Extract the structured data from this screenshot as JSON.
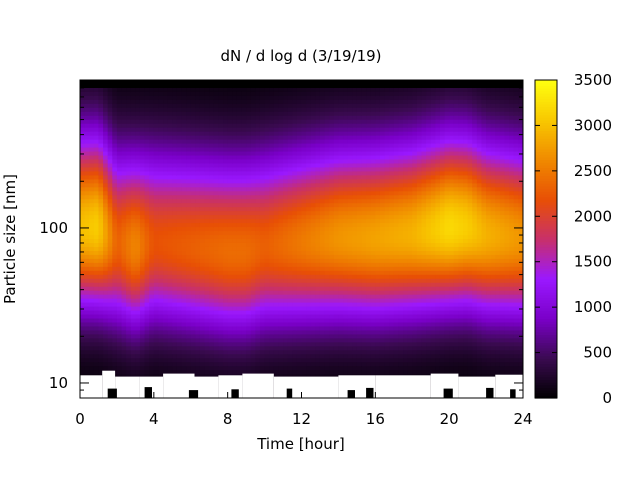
{
  "chart_data": {
    "type": "heatmap",
    "title": "dN / d log d (3/19/19)",
    "xlabel": "Time [hour]",
    "ylabel": "Particle size [nm]",
    "x_ticks": [
      "0",
      "4",
      "8",
      "12",
      "16",
      "20",
      "24"
    ],
    "x_tick_values": [
      0,
      4,
      8,
      12,
      16,
      20,
      24
    ],
    "y_ticks": [
      "10",
      "100"
    ],
    "y_tick_values": [
      10,
      100
    ],
    "xlim": [
      0,
      24
    ],
    "ylim": [
      8,
      900
    ],
    "y_scale": "log",
    "colorbar": {
      "range": [
        0,
        3500
      ],
      "ticks": [
        "0",
        "500",
        "1000",
        "1500",
        "2000",
        "2500",
        "3000",
        "3500"
      ],
      "tick_values": [
        0,
        500,
        1000,
        1500,
        2000,
        2500,
        3000,
        3500
      ],
      "colormap": [
        "#000000",
        "#3a0a50",
        "#7a00c8",
        "#9a18ff",
        "#c8306a",
        "#e84f05",
        "#f08a00",
        "#f8c800",
        "#ffff10"
      ]
    },
    "peak_size_nm_by_time": {
      "time_h": [
        0,
        1,
        2,
        3,
        4,
        6,
        8,
        9,
        10,
        12,
        14,
        16,
        18,
        20,
        21,
        22,
        24
      ],
      "peak_diameter_nm": [
        100,
        100,
        80,
        75,
        80,
        75,
        70,
        70,
        75,
        80,
        85,
        85,
        90,
        100,
        100,
        90,
        85
      ],
      "peak_value": [
        3000,
        3100,
        2300,
        2600,
        2200,
        2300,
        2400,
        2400,
        2300,
        2500,
        2700,
        2800,
        2900,
        3200,
        3100,
        2900,
        2700
      ]
    },
    "grid": false,
    "legend": "colorbar-right"
  }
}
